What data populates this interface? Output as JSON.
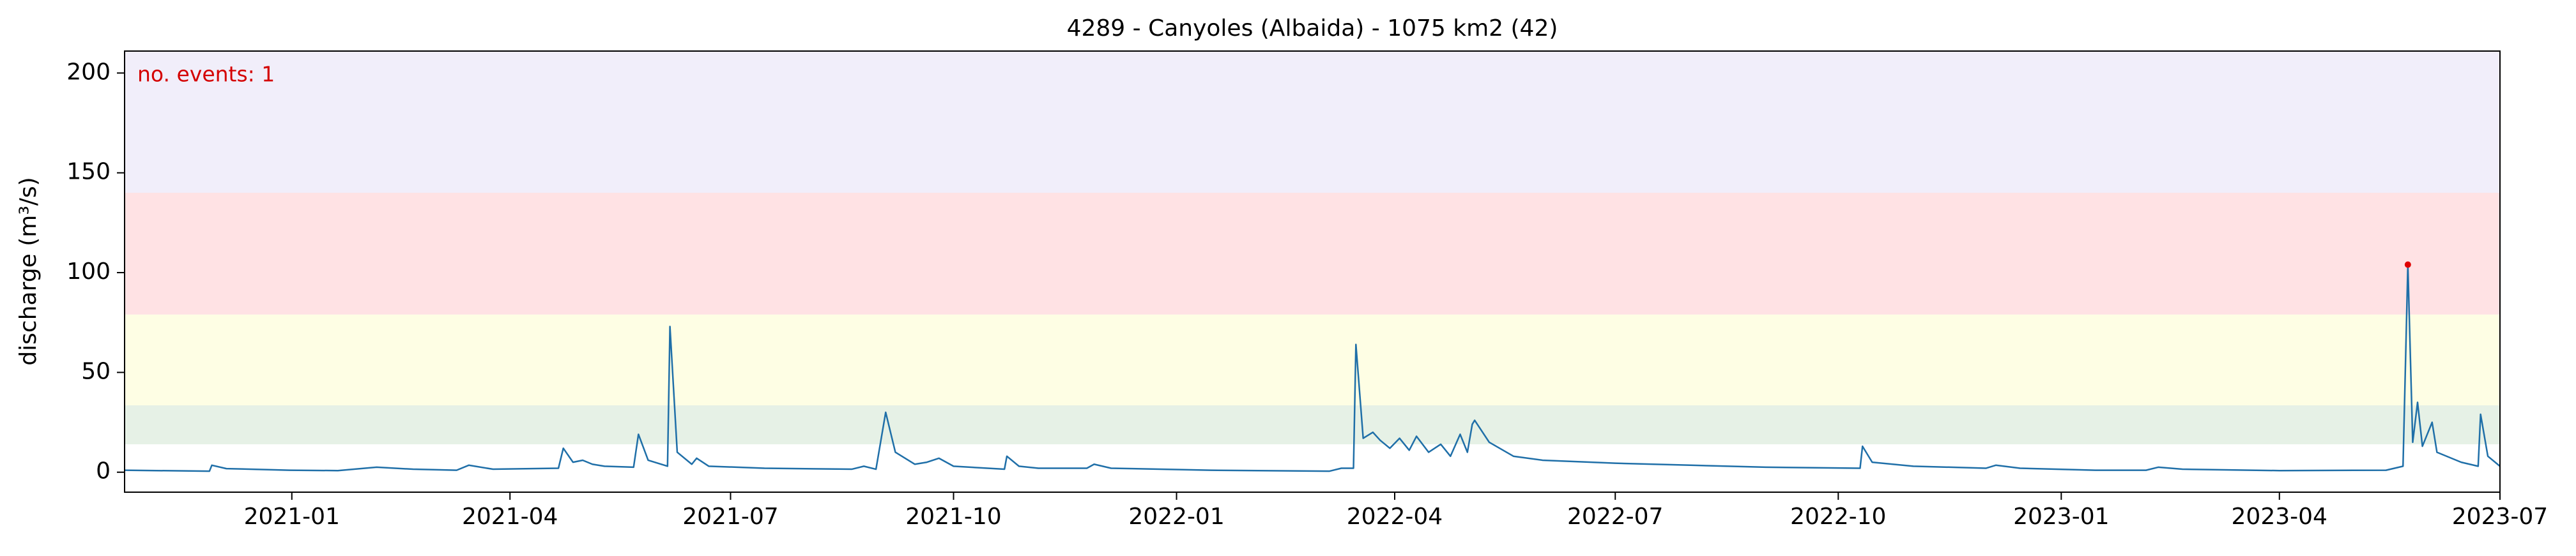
{
  "chart_data": {
    "type": "line",
    "title": "4289 - Canyoles (Albaida) - 1075 km2 (42)",
    "ylabel": "discharge (m³/s)",
    "annotation": "no. events: 1",
    "annotation_color": "#d40000",
    "xlim": [
      "2020-10-24",
      "2023-07-01"
    ],
    "xticks": [
      {
        "value": "2021-01-01",
        "label": "2021-01"
      },
      {
        "value": "2021-04-01",
        "label": "2021-04"
      },
      {
        "value": "2021-07-01",
        "label": "2021-07"
      },
      {
        "value": "2021-10-01",
        "label": "2021-10"
      },
      {
        "value": "2022-01-01",
        "label": "2022-01"
      },
      {
        "value": "2022-04-01",
        "label": "2022-04"
      },
      {
        "value": "2022-07-01",
        "label": "2022-07"
      },
      {
        "value": "2022-10-01",
        "label": "2022-10"
      },
      {
        "value": "2023-01-01",
        "label": "2023-01"
      },
      {
        "value": "2023-04-01",
        "label": "2023-04"
      },
      {
        "value": "2023-07-01",
        "label": "2023-07"
      }
    ],
    "ylim": [
      -10,
      211
    ],
    "yticks": [
      0,
      50,
      100,
      150,
      200
    ],
    "bands": [
      {
        "from": 14,
        "to": 33.5,
        "color": "#e6f1e6"
      },
      {
        "from": 33.5,
        "to": 79,
        "color": "#fefee4"
      },
      {
        "from": 79,
        "to": 140,
        "color": "#ffe2e4"
      },
      {
        "from": 140,
        "color": "#f1eefa"
      }
    ],
    "series": [
      {
        "color": "#1f6fa8",
        "x": [
          "2020-10-24",
          "2020-11-28",
          "2020-11-29",
          "2020-12-05",
          "2020-12-31",
          "2021-01-20",
          "2021-02-05",
          "2021-02-20",
          "2021-03-10",
          "2021-03-15",
          "2021-03-25",
          "2021-04-21",
          "2021-04-23",
          "2021-04-27",
          "2021-05-01",
          "2021-05-05",
          "2021-05-10",
          "2021-05-22",
          "2021-05-24",
          "2021-05-28",
          "2021-06-05",
          "2021-06-06",
          "2021-06-09",
          "2021-06-15",
          "2021-06-17",
          "2021-06-22",
          "2021-07-15",
          "2021-08-20",
          "2021-08-25",
          "2021-08-30",
          "2021-09-03",
          "2021-09-07",
          "2021-09-15",
          "2021-09-20",
          "2021-09-25",
          "2021-10-01",
          "2021-10-22",
          "2021-10-23",
          "2021-10-28",
          "2021-11-05",
          "2021-11-25",
          "2021-11-28",
          "2021-12-05",
          "2022-01-15",
          "2022-03-05",
          "2022-03-10",
          "2022-03-15",
          "2022-03-16",
          "2022-03-19",
          "2022-03-23",
          "2022-03-26",
          "2022-03-30",
          "2022-04-03",
          "2022-04-07",
          "2022-04-10",
          "2022-04-15",
          "2022-04-20",
          "2022-04-24",
          "2022-04-28",
          "2022-05-01",
          "2022-05-03",
          "2022-05-04",
          "2022-05-10",
          "2022-05-20",
          "2022-06-01",
          "2022-07-01",
          "2022-08-01",
          "2022-09-01",
          "2022-10-10",
          "2022-10-11",
          "2022-10-15",
          "2022-11-01",
          "2022-12-01",
          "2022-12-05",
          "2022-12-15",
          "2023-01-15",
          "2023-02-05",
          "2023-02-10",
          "2023-02-20",
          "2023-04-01",
          "2023-05-15",
          "2023-05-22",
          "2023-05-24",
          "2023-05-26",
          "2023-05-28",
          "2023-05-30",
          "2023-06-03",
          "2023-06-05",
          "2023-06-15",
          "2023-06-22",
          "2023-06-23",
          "2023-06-26",
          "2023-07-01"
        ],
        "values": [
          1,
          0.5,
          3.5,
          1.8,
          1,
          0.8,
          2.5,
          1.5,
          1,
          3.5,
          1.5,
          2,
          12,
          5,
          6,
          4,
          3,
          2.5,
          19,
          6,
          3,
          73,
          10,
          4,
          7,
          3,
          2,
          1.5,
          3,
          1.5,
          30,
          10,
          4,
          5,
          7,
          3,
          1.5,
          8,
          3,
          2,
          2,
          4,
          2,
          1,
          0.5,
          2,
          2,
          64,
          17,
          20,
          16,
          12,
          17,
          11,
          18,
          10,
          14,
          8,
          19,
          10,
          24,
          26,
          15,
          8,
          6,
          4.5,
          3.5,
          2.5,
          2,
          13,
          5,
          3,
          2,
          3.5,
          2,
          1,
          1,
          2.5,
          1.5,
          0.8,
          1,
          3,
          104,
          15,
          35,
          13,
          25,
          10,
          5,
          3,
          29,
          8,
          3
        ]
      }
    ],
    "events": {
      "color": "#e00000",
      "x": [
        "2023-05-24"
      ],
      "values": [
        104
      ]
    }
  }
}
